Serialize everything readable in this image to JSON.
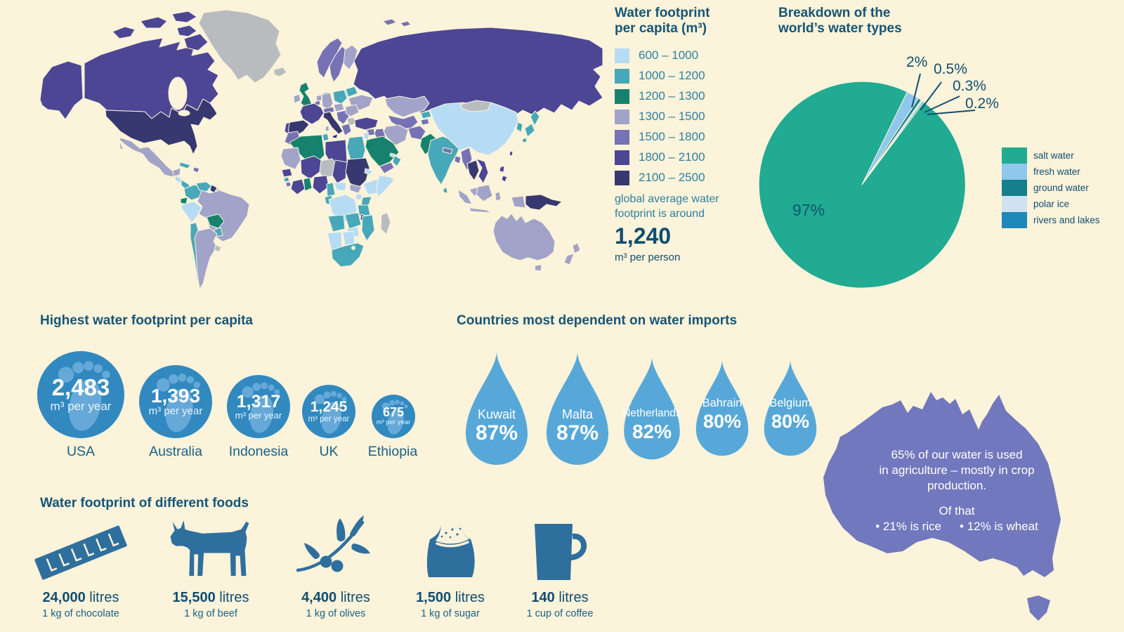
{
  "palette": {
    "bg": "#fbf3da",
    "c1": "#b5dcf4",
    "c2": "#46a8b8",
    "c3": "#16826e",
    "c4": "#a2a3c8",
    "c5": "#7672b5",
    "c6": "#4c4695",
    "c7": "#37386f",
    "nodata": "#b9bcbf",
    "heading": "#155577",
    "body": "#2e7fa2",
    "value": "#114e71",
    "label": "#1b6286",
    "deep": "#0e566e",
    "circle": "#3189c0",
    "foot": "#66a9d8",
    "drop": "#57a8d8",
    "icon": "#2e6f9e",
    "australia": "#7278bd"
  },
  "chart_data": [
    {
      "id": "water-footprint-map",
      "type": "choropleth",
      "title": "Water footprint per capita (m³)",
      "legend_title_line1": "Water footprint",
      "legend_title_line2": "per capita (m³)",
      "classes": [
        {
          "label": "600 – 1000",
          "color": "#b5dcf4"
        },
        {
          "label": "1000 – 1200",
          "color": "#46a8b8"
        },
        {
          "label": "1200 – 1300",
          "color": "#16826e"
        },
        {
          "label": "1300 – 1500",
          "color": "#a2a3c8"
        },
        {
          "label": "1500 – 1800",
          "color": "#7672b5"
        },
        {
          "label": "1800 – 2100",
          "color": "#4c4695"
        },
        {
          "label": "2100 – 2500",
          "color": "#37386f"
        }
      ],
      "no_data_color": "#b9bcbf",
      "note_line1": "global average water",
      "note_line2": "footprint is around",
      "average_value": "1,240",
      "average_unit": "m³ per person"
    },
    {
      "id": "water-types-pie",
      "type": "pie",
      "title_line1": "Breakdown of the",
      "title_line2": "world’s water types",
      "start_angle_deg": 26,
      "inside_label": "97%",
      "legend_position": "right",
      "slices": [
        {
          "label": "salt water",
          "value": 97,
          "display": "97%",
          "color": "#20ab92"
        },
        {
          "label": "fresh water",
          "value": 2,
          "display": "2%",
          "color": "#8fc8ec"
        },
        {
          "label": "ground water",
          "value": 0.5,
          "display": "0.5%",
          "color": "#15808d"
        },
        {
          "label": "polar ice",
          "value": 0.3,
          "display": "0.3%",
          "color": "#cfe2f2"
        },
        {
          "label": "rivers and lakes",
          "value": 0.2,
          "display": "0.2%",
          "color": "#1e88b8"
        }
      ]
    },
    {
      "id": "highest-footprint",
      "type": "pictogram",
      "title": "Highest water footprint per capita",
      "unit": "m³ per year",
      "items": [
        {
          "country": "USA",
          "value": "2,483",
          "numeric": 2483
        },
        {
          "country": "Australia",
          "value": "1,393",
          "numeric": 1393
        },
        {
          "country": "Indonesia",
          "value": "1,317",
          "numeric": 1317
        },
        {
          "country": "UK",
          "value": "1,245",
          "numeric": 1245
        },
        {
          "country": "Ethiopia",
          "value": "675",
          "numeric": 675
        }
      ]
    },
    {
      "id": "import-dependency",
      "type": "pictogram",
      "title": "Countries most dependent on water imports",
      "items": [
        {
          "country": "Kuwait",
          "value": "87%",
          "numeric": 87
        },
        {
          "country": "Malta",
          "value": "87%",
          "numeric": 87
        },
        {
          "country": "Netherlands",
          "value": "82%",
          "numeric": 82
        },
        {
          "country": "Bahrain",
          "value": "80%",
          "numeric": 80
        },
        {
          "country": "Belgium",
          "value": "80%",
          "numeric": 80
        }
      ]
    },
    {
      "id": "food-footprint",
      "type": "pictogram",
      "title": "Water footprint of different foods",
      "items": [
        {
          "food": "chocolate",
          "value": "24,000",
          "numeric": 24000,
          "unit": "litres",
          "caption": "1 kg of chocolate"
        },
        {
          "food": "beef",
          "value": "15,500",
          "numeric": 15500,
          "unit": "litres",
          "caption": "1 kg of beef"
        },
        {
          "food": "olives",
          "value": "4,400",
          "numeric": 4400,
          "unit": "litres",
          "caption": "1 kg of olives"
        },
        {
          "food": "sugar",
          "value": "1,500",
          "numeric": 1500,
          "unit": "litres",
          "caption": "1 kg of sugar"
        },
        {
          "food": "coffee",
          "value": "140",
          "numeric": 140,
          "unit": "litres",
          "caption": "1 cup of coffee"
        }
      ]
    },
    {
      "id": "australia-agriculture",
      "type": "annotation",
      "line1": "65% of our water is used",
      "line2": "in agriculture – mostly in crop",
      "line3": "production.",
      "subline": "Of that",
      "bullet1": "• 21% is rice",
      "bullet2": "• 12% is wheat"
    }
  ]
}
